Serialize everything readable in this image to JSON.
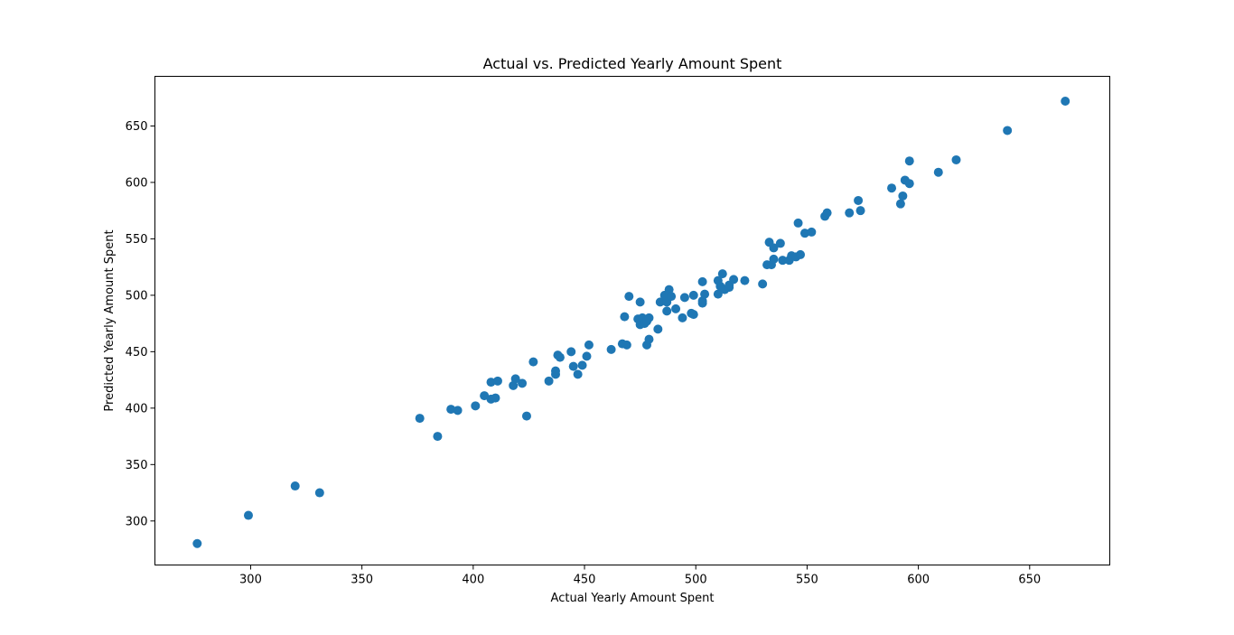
{
  "chart_data": {
    "type": "scatter",
    "title": "Actual vs. Predicted Yearly Amount Spent",
    "xlabel": "Actual Yearly Amount Spent",
    "ylabel": "Predicted Yearly Amount Spent",
    "xlim": [
      257,
      686
    ],
    "ylim": [
      261,
      694
    ],
    "xticks": [
      300,
      350,
      400,
      450,
      500,
      550,
      600,
      650
    ],
    "yticks": [
      300,
      350,
      400,
      450,
      500,
      550,
      600,
      650
    ],
    "xtick_labels": [
      "300",
      "350",
      "400",
      "450",
      "500",
      "550",
      "600",
      "650"
    ],
    "ytick_labels": [
      "300",
      "350",
      "400",
      "450",
      "500",
      "550",
      "600",
      "650"
    ],
    "grid": false,
    "marker_color": "#1f77b4",
    "points": [
      [
        276,
        280
      ],
      [
        299,
        305
      ],
      [
        320,
        331
      ],
      [
        331,
        325
      ],
      [
        376,
        391
      ],
      [
        384,
        375
      ],
      [
        390,
        399
      ],
      [
        393,
        398
      ],
      [
        401,
        402
      ],
      [
        405,
        411
      ],
      [
        408,
        408
      ],
      [
        408,
        423
      ],
      [
        410,
        409
      ],
      [
        411,
        424
      ],
      [
        418,
        420
      ],
      [
        419,
        426
      ],
      [
        422,
        422
      ],
      [
        424,
        393
      ],
      [
        427,
        441
      ],
      [
        434,
        424
      ],
      [
        437,
        430
      ],
      [
        437,
        433
      ],
      [
        438,
        447
      ],
      [
        439,
        445
      ],
      [
        444,
        450
      ],
      [
        445,
        437
      ],
      [
        447,
        430
      ],
      [
        449,
        438
      ],
      [
        451,
        446
      ],
      [
        452,
        456
      ],
      [
        462,
        452
      ],
      [
        467,
        457
      ],
      [
        468,
        481
      ],
      [
        469,
        456
      ],
      [
        470,
        499
      ],
      [
        474,
        479
      ],
      [
        475,
        494
      ],
      [
        475,
        474
      ],
      [
        476,
        480
      ],
      [
        477,
        475
      ],
      [
        478,
        477
      ],
      [
        478,
        456
      ],
      [
        479,
        461
      ],
      [
        479,
        480
      ],
      [
        483,
        470
      ],
      [
        484,
        494
      ],
      [
        486,
        500
      ],
      [
        487,
        486
      ],
      [
        487,
        494
      ],
      [
        488,
        505
      ],
      [
        489,
        499
      ],
      [
        491,
        488
      ],
      [
        494,
        480
      ],
      [
        495,
        498
      ],
      [
        498,
        484
      ],
      [
        499,
        483
      ],
      [
        499,
        500
      ],
      [
        503,
        495
      ],
      [
        503,
        512
      ],
      [
        504,
        501
      ],
      [
        503,
        493
      ],
      [
        510,
        501
      ],
      [
        510,
        513
      ],
      [
        511,
        508
      ],
      [
        512,
        519
      ],
      [
        513,
        505
      ],
      [
        515,
        507
      ],
      [
        515,
        509
      ],
      [
        517,
        514
      ],
      [
        522,
        513
      ],
      [
        530,
        510
      ],
      [
        532,
        527
      ],
      [
        533,
        547
      ],
      [
        534,
        527
      ],
      [
        535,
        542
      ],
      [
        535,
        532
      ],
      [
        538,
        546
      ],
      [
        539,
        531
      ],
      [
        542,
        531
      ],
      [
        543,
        535
      ],
      [
        545,
        534
      ],
      [
        546,
        564
      ],
      [
        547,
        536
      ],
      [
        549,
        555
      ],
      [
        552,
        556
      ],
      [
        558,
        570
      ],
      [
        559,
        573
      ],
      [
        569,
        573
      ],
      [
        573,
        584
      ],
      [
        574,
        575
      ],
      [
        588,
        595
      ],
      [
        592,
        581
      ],
      [
        593,
        588
      ],
      [
        594,
        602
      ],
      [
        596,
        599
      ],
      [
        596,
        619
      ],
      [
        609,
        609
      ],
      [
        617,
        620
      ],
      [
        640,
        646
      ],
      [
        666,
        672
      ]
    ]
  }
}
